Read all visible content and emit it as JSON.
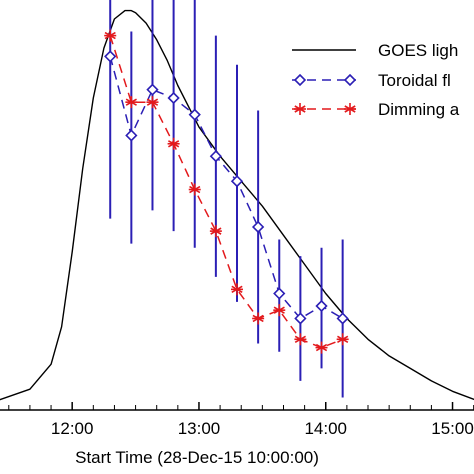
{
  "chart_data": {
    "type": "line",
    "xlabel": "Start Time (28-Dec-15 10:00:00)",
    "ylabel": "",
    "title": "",
    "xlim": [
      "11:23",
      "15:13"
    ],
    "ylim": [
      0,
      1
    ],
    "x_ticks": [
      "12:00",
      "13:00",
      "14:00",
      "15:00"
    ],
    "grid": false,
    "legend_position": "top-right",
    "series": [
      {
        "name": "GOES ligh",
        "style": "line",
        "color": "#000000",
        "x": [
          "11:23",
          "11:40",
          "11:50",
          "11:55",
          "12:00",
          "12:05",
          "12:10",
          "12:15",
          "12:20",
          "12:25",
          "12:28",
          "12:30",
          "12:35",
          "12:40",
          "12:45",
          "12:50",
          "12:55",
          "13:00",
          "13:10",
          "13:20",
          "13:30",
          "13:40",
          "13:50",
          "14:00",
          "14:10",
          "14:20",
          "14:30",
          "14:40",
          "14:50",
          "15:00",
          "15:13"
        ],
        "values": [
          0.02,
          0.05,
          0.11,
          0.2,
          0.38,
          0.58,
          0.75,
          0.87,
          0.94,
          0.96,
          0.96,
          0.955,
          0.93,
          0.89,
          0.84,
          0.78,
          0.73,
          0.68,
          0.61,
          0.55,
          0.49,
          0.42,
          0.35,
          0.28,
          0.22,
          0.17,
          0.13,
          0.1,
          0.07,
          0.045,
          0.02
        ]
      },
      {
        "name": "Toroidal fl",
        "style": "dashed-diamond",
        "color": "#2b1fb5",
        "x": [
          "12:18",
          "12:28",
          "12:38",
          "12:48",
          "12:58",
          "13:08",
          "13:18",
          "13:28",
          "13:38",
          "13:48",
          "13:58",
          "14:08"
        ],
        "values": [
          0.85,
          0.66,
          0.77,
          0.75,
          0.71,
          0.61,
          0.55,
          0.44,
          0.28,
          0.22,
          0.25,
          0.22
        ],
        "error_low": [
          0.46,
          0.4,
          0.48,
          0.43,
          0.39,
          0.32,
          0.26,
          0.16,
          0.14,
          0.07,
          0.1,
          0.03
        ],
        "error_high": [
          1.24,
          0.91,
          1.05,
          1.06,
          1.02,
          0.9,
          0.83,
          0.72,
          0.41,
          0.37,
          0.39,
          0.41
        ]
      },
      {
        "name": "Dimming a",
        "style": "dashed-asterisk",
        "color": "#e3191c",
        "x": [
          "12:18",
          "12:28",
          "12:38",
          "12:48",
          "12:58",
          "13:08",
          "13:18",
          "13:28",
          "13:38",
          "13:48",
          "13:58",
          "14:08"
        ],
        "values": [
          0.9,
          0.74,
          0.74,
          0.64,
          0.53,
          0.43,
          0.29,
          0.22,
          0.24,
          0.17,
          0.15,
          0.17
        ]
      }
    ]
  }
}
